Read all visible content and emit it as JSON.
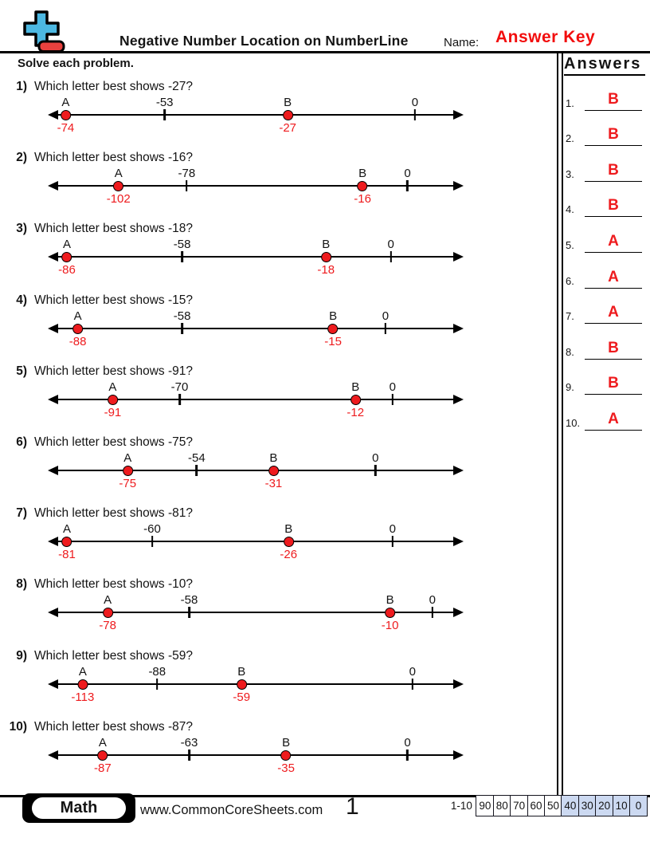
{
  "header": {
    "title": "Negative Number Location on NumberLine",
    "name_label": "Name:",
    "name_value": "Answer Key"
  },
  "instructions": "Solve each problem.",
  "answers_panel": {
    "title": "Answers",
    "items": [
      {
        "num": "1.",
        "value": "B"
      },
      {
        "num": "2.",
        "value": "B"
      },
      {
        "num": "3.",
        "value": "B"
      },
      {
        "num": "4.",
        "value": "B"
      },
      {
        "num": "5.",
        "value": "A"
      },
      {
        "num": "6.",
        "value": "A"
      },
      {
        "num": "7.",
        "value": "A"
      },
      {
        "num": "8.",
        "value": "B"
      },
      {
        "num": "9.",
        "value": "B"
      },
      {
        "num": "10.",
        "value": "A"
      }
    ]
  },
  "problems": [
    {
      "num": "1)",
      "question": "Which letter best shows -27?",
      "points": [
        {
          "kind": "dot",
          "label": "A",
          "value": "-74",
          "pos": 4.3
        },
        {
          "kind": "tick",
          "label": "-53",
          "pos": 28.1
        },
        {
          "kind": "dot",
          "label": "B",
          "value": "-27",
          "pos": 57.7
        },
        {
          "kind": "tick",
          "label": "0",
          "pos": 88.3
        }
      ]
    },
    {
      "num": "2)",
      "question": "Which letter best shows -16?",
      "points": [
        {
          "kind": "dot",
          "label": "A",
          "value": "-102",
          "pos": 17.0
        },
        {
          "kind": "tick",
          "label": "-78",
          "pos": 33.4
        },
        {
          "kind": "dot",
          "label": "B",
          "value": "-16",
          "pos": 75.7
        },
        {
          "kind": "tick",
          "label": "0",
          "pos": 86.5
        }
      ]
    },
    {
      "num": "3)",
      "question": "Which letter best shows -18?",
      "points": [
        {
          "kind": "dot",
          "label": "A",
          "value": "-86",
          "pos": 4.6
        },
        {
          "kind": "tick",
          "label": "-58",
          "pos": 32.3
        },
        {
          "kind": "dot",
          "label": "B",
          "value": "-18",
          "pos": 66.9
        },
        {
          "kind": "tick",
          "label": "0",
          "pos": 82.5
        }
      ]
    },
    {
      "num": "4)",
      "question": "Which letter best shows -15?",
      "points": [
        {
          "kind": "dot",
          "label": "A",
          "value": "-88",
          "pos": 7.2
        },
        {
          "kind": "tick",
          "label": "-58",
          "pos": 32.3
        },
        {
          "kind": "dot",
          "label": "B",
          "value": "-15",
          "pos": 68.6
        },
        {
          "kind": "tick",
          "label": "0",
          "pos": 81.2
        }
      ]
    },
    {
      "num": "5)",
      "question": "Which letter best shows -91?",
      "points": [
        {
          "kind": "dot",
          "label": "A",
          "value": "-91",
          "pos": 15.6
        },
        {
          "kind": "tick",
          "label": "-70",
          "pos": 31.7
        },
        {
          "kind": "dot",
          "label": "B",
          "value": "-12",
          "pos": 74.0
        },
        {
          "kind": "tick",
          "label": "0",
          "pos": 82.9
        }
      ]
    },
    {
      "num": "6)",
      "question": "Which letter best shows -75?",
      "points": [
        {
          "kind": "dot",
          "label": "A",
          "value": "-75",
          "pos": 19.2
        },
        {
          "kind": "tick",
          "label": "-54",
          "pos": 35.8
        },
        {
          "kind": "dot",
          "label": "B",
          "value": "-31",
          "pos": 54.3
        },
        {
          "kind": "tick",
          "label": "0",
          "pos": 78.8
        }
      ]
    },
    {
      "num": "7)",
      "question": "Which letter best shows -81?",
      "points": [
        {
          "kind": "dot",
          "label": "A",
          "value": "-81",
          "pos": 4.6
        },
        {
          "kind": "tick",
          "label": "-60",
          "pos": 25.1
        },
        {
          "kind": "dot",
          "label": "B",
          "value": "-26",
          "pos": 57.9
        },
        {
          "kind": "tick",
          "label": "0",
          "pos": 82.9
        }
      ]
    },
    {
      "num": "8)",
      "question": "Which letter best shows -10?",
      "points": [
        {
          "kind": "dot",
          "label": "A",
          "value": "-78",
          "pos": 14.4
        },
        {
          "kind": "tick",
          "label": "-58",
          "pos": 34.0
        },
        {
          "kind": "dot",
          "label": "B",
          "value": "-10",
          "pos": 82.3
        },
        {
          "kind": "tick",
          "label": "0",
          "pos": 92.5
        }
      ]
    },
    {
      "num": "9)",
      "question": "Which letter best shows -59?",
      "points": [
        {
          "kind": "dot",
          "label": "A",
          "value": "-113",
          "pos": 8.4
        },
        {
          "kind": "tick",
          "label": "-88",
          "pos": 26.3
        },
        {
          "kind": "dot",
          "label": "B",
          "value": "-59",
          "pos": 46.6
        },
        {
          "kind": "tick",
          "label": "0",
          "pos": 87.7
        }
      ]
    },
    {
      "num": "10)",
      "question": "Which letter best shows -87?",
      "points": [
        {
          "kind": "dot",
          "label": "A",
          "value": "-87",
          "pos": 13.2
        },
        {
          "kind": "tick",
          "label": "-63",
          "pos": 34.0
        },
        {
          "kind": "dot",
          "label": "B",
          "value": "-35",
          "pos": 57.3
        },
        {
          "kind": "tick",
          "label": "0",
          "pos": 86.5
        }
      ]
    }
  ],
  "footer": {
    "subject": "Math",
    "website": "www.CommonCoreSheets.com",
    "page": "1",
    "score_label": "1-10",
    "score_boxes": [
      {
        "label": "90",
        "highlight": false
      },
      {
        "label": "80",
        "highlight": false
      },
      {
        "label": "70",
        "highlight": false
      },
      {
        "label": "60",
        "highlight": false
      },
      {
        "label": "50",
        "highlight": false
      },
      {
        "label": "40",
        "highlight": true
      },
      {
        "label": "30",
        "highlight": true
      },
      {
        "label": "20",
        "highlight": true
      },
      {
        "label": "10",
        "highlight": true
      },
      {
        "label": "0",
        "highlight": true
      }
    ]
  },
  "colors": {
    "marker_red": "#ee1b1e",
    "answer_key_red": "#f20d0d",
    "logo_blue": "#4cb8e2",
    "logo_red": "#e8413e",
    "score_highlight": "#ccd9f1"
  }
}
